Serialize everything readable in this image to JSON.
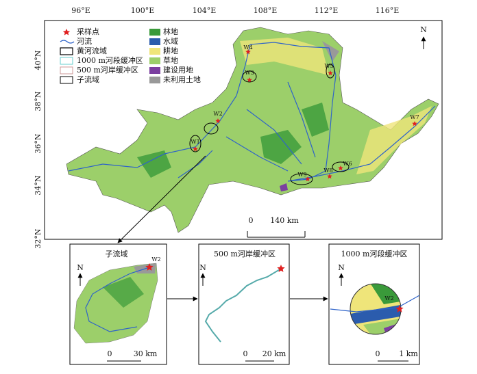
{
  "map": {
    "lon_labels": [
      "96°E",
      "100°E",
      "104°E",
      "108°E",
      "112°E",
      "116°E"
    ],
    "lat_labels": [
      "40°N",
      "38°N",
      "36°N",
      "34°N",
      "32°N"
    ],
    "north": "N",
    "scale": {
      "zero": "0",
      "label": "140 km"
    },
    "sites": [
      {
        "label": "W1"
      },
      {
        "label": "W2"
      },
      {
        "label": "W3"
      },
      {
        "label": "W4"
      },
      {
        "label": "W5"
      },
      {
        "label": "W6"
      },
      {
        "label": "W7"
      },
      {
        "label": "W8"
      },
      {
        "label": "W9"
      }
    ]
  },
  "legend": {
    "items": [
      "采样点",
      "河流",
      "黄河流域",
      "1000 m河段缓冲区",
      "500 m河岸缓冲区",
      "子流域",
      "林地",
      "水域",
      "耕地",
      "草地",
      "建设用地",
      "未利用土地"
    ]
  },
  "insets": [
    {
      "title": "子流域",
      "north": "N",
      "site": "W2",
      "scale_zero": "0",
      "scale_label": "30 km"
    },
    {
      "title": "500 m河岸缓冲区",
      "north": "N",
      "scale_zero": "0",
      "scale_label": "20 km"
    },
    {
      "title": "1000 m河段缓冲区",
      "north": "N",
      "site": "W2",
      "scale_zero": "0",
      "scale_label": "1 km"
    }
  ]
}
